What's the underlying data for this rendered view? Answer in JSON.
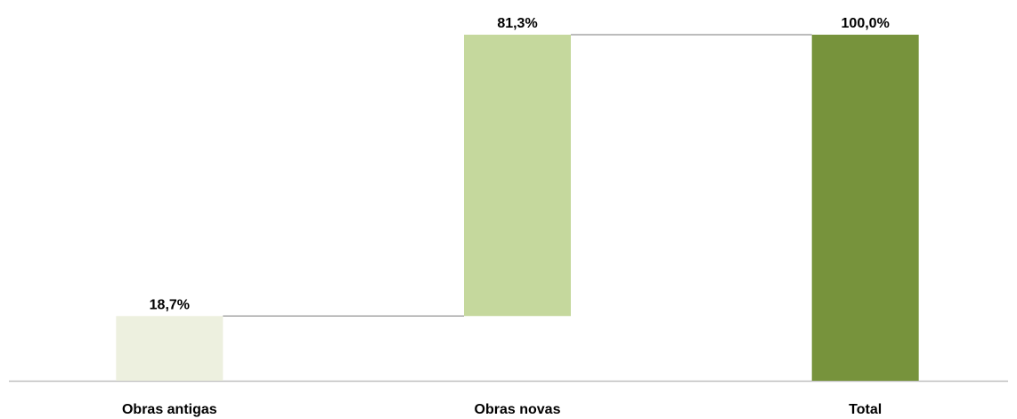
{
  "chart_data": {
    "type": "waterfall",
    "categories": [
      "Obras antigas",
      "Obras novas",
      "Total"
    ],
    "values": [
      18.7,
      81.3,
      100.0
    ],
    "value_labels": [
      "18,7%",
      "81,3%",
      "100,0%"
    ],
    "is_total": [
      false,
      false,
      true
    ],
    "colors": [
      "#edf0df",
      "#c5d89d",
      "#77933c"
    ]
  }
}
